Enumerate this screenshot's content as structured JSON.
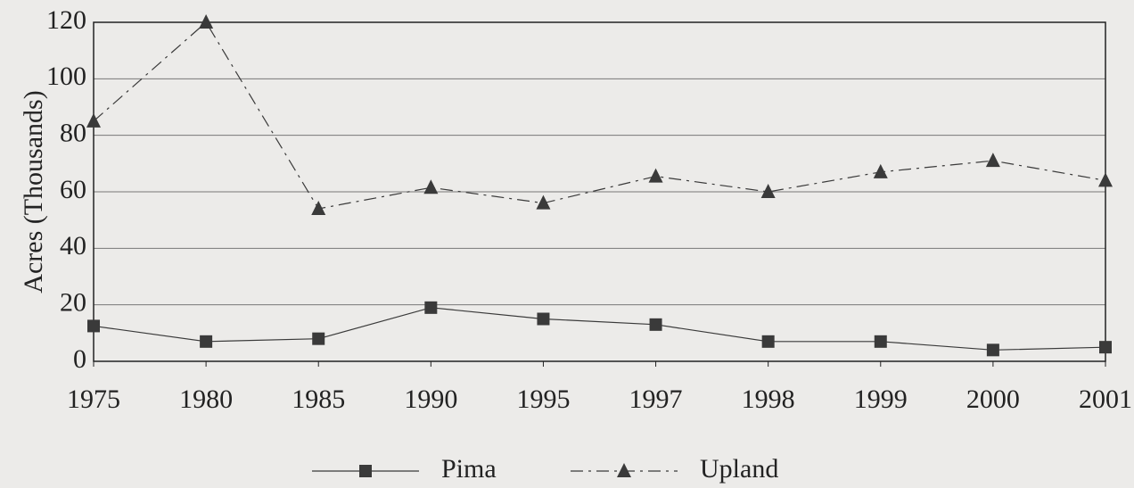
{
  "chart_data": {
    "type": "line",
    "y_label": "Acres (Thousands)",
    "categories": [
      "1975",
      "1980",
      "1985",
      "1990",
      "1995",
      "1997",
      "1998",
      "1999",
      "2000",
      "2001"
    ],
    "series": [
      {
        "name": "Pima",
        "color": "#3a3a3a",
        "marker": "square",
        "dash": "solid",
        "values": [
          12.5,
          7,
          8,
          19,
          15,
          13,
          7,
          7,
          4,
          5
        ]
      },
      {
        "name": "Upland",
        "color": "#3a3a3a",
        "marker": "triangle",
        "dash": "dashdot",
        "values": [
          85,
          120,
          54,
          61.5,
          56,
          65.5,
          60,
          67,
          71,
          64
        ]
      }
    ],
    "ylim": [
      0,
      120
    ],
    "yticks": [
      0,
      20,
      40,
      60,
      80,
      100,
      120
    ],
    "grid": true,
    "legend": "bottom"
  }
}
